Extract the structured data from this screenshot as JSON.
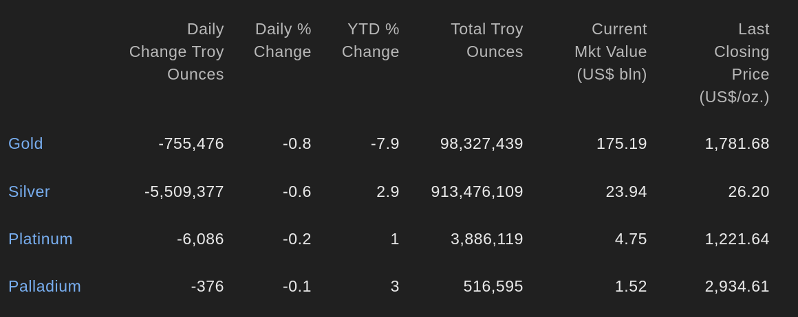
{
  "table": {
    "headers": [
      [
        "Daily",
        "Change Troy",
        "Ounces"
      ],
      [
        "Daily %",
        "Change"
      ],
      [
        "YTD %",
        "Change"
      ],
      [
        "Total Troy",
        "Ounces"
      ],
      [
        "Current",
        "Mkt Value",
        "(US$ bln)"
      ],
      [
        "Last",
        "Closing",
        "Price",
        "(US$/oz.)"
      ]
    ],
    "rows": [
      [
        "Gold",
        "-755,476",
        "-0.8",
        "-7.9",
        "98,327,439",
        "175.19",
        "1,781.68"
      ],
      [
        "Silver",
        "-5,509,377",
        "-0.6",
        "2.9",
        "913,476,109",
        "23.94",
        "26.20"
      ],
      [
        "Platinum",
        "-6,086",
        "-0.2",
        "1",
        "3,886,119",
        "4.75",
        "1,221.64"
      ],
      [
        "Palladium",
        "-376",
        "-0.1",
        "3",
        "516,595",
        "1.52",
        "2,934.61"
      ]
    ]
  }
}
